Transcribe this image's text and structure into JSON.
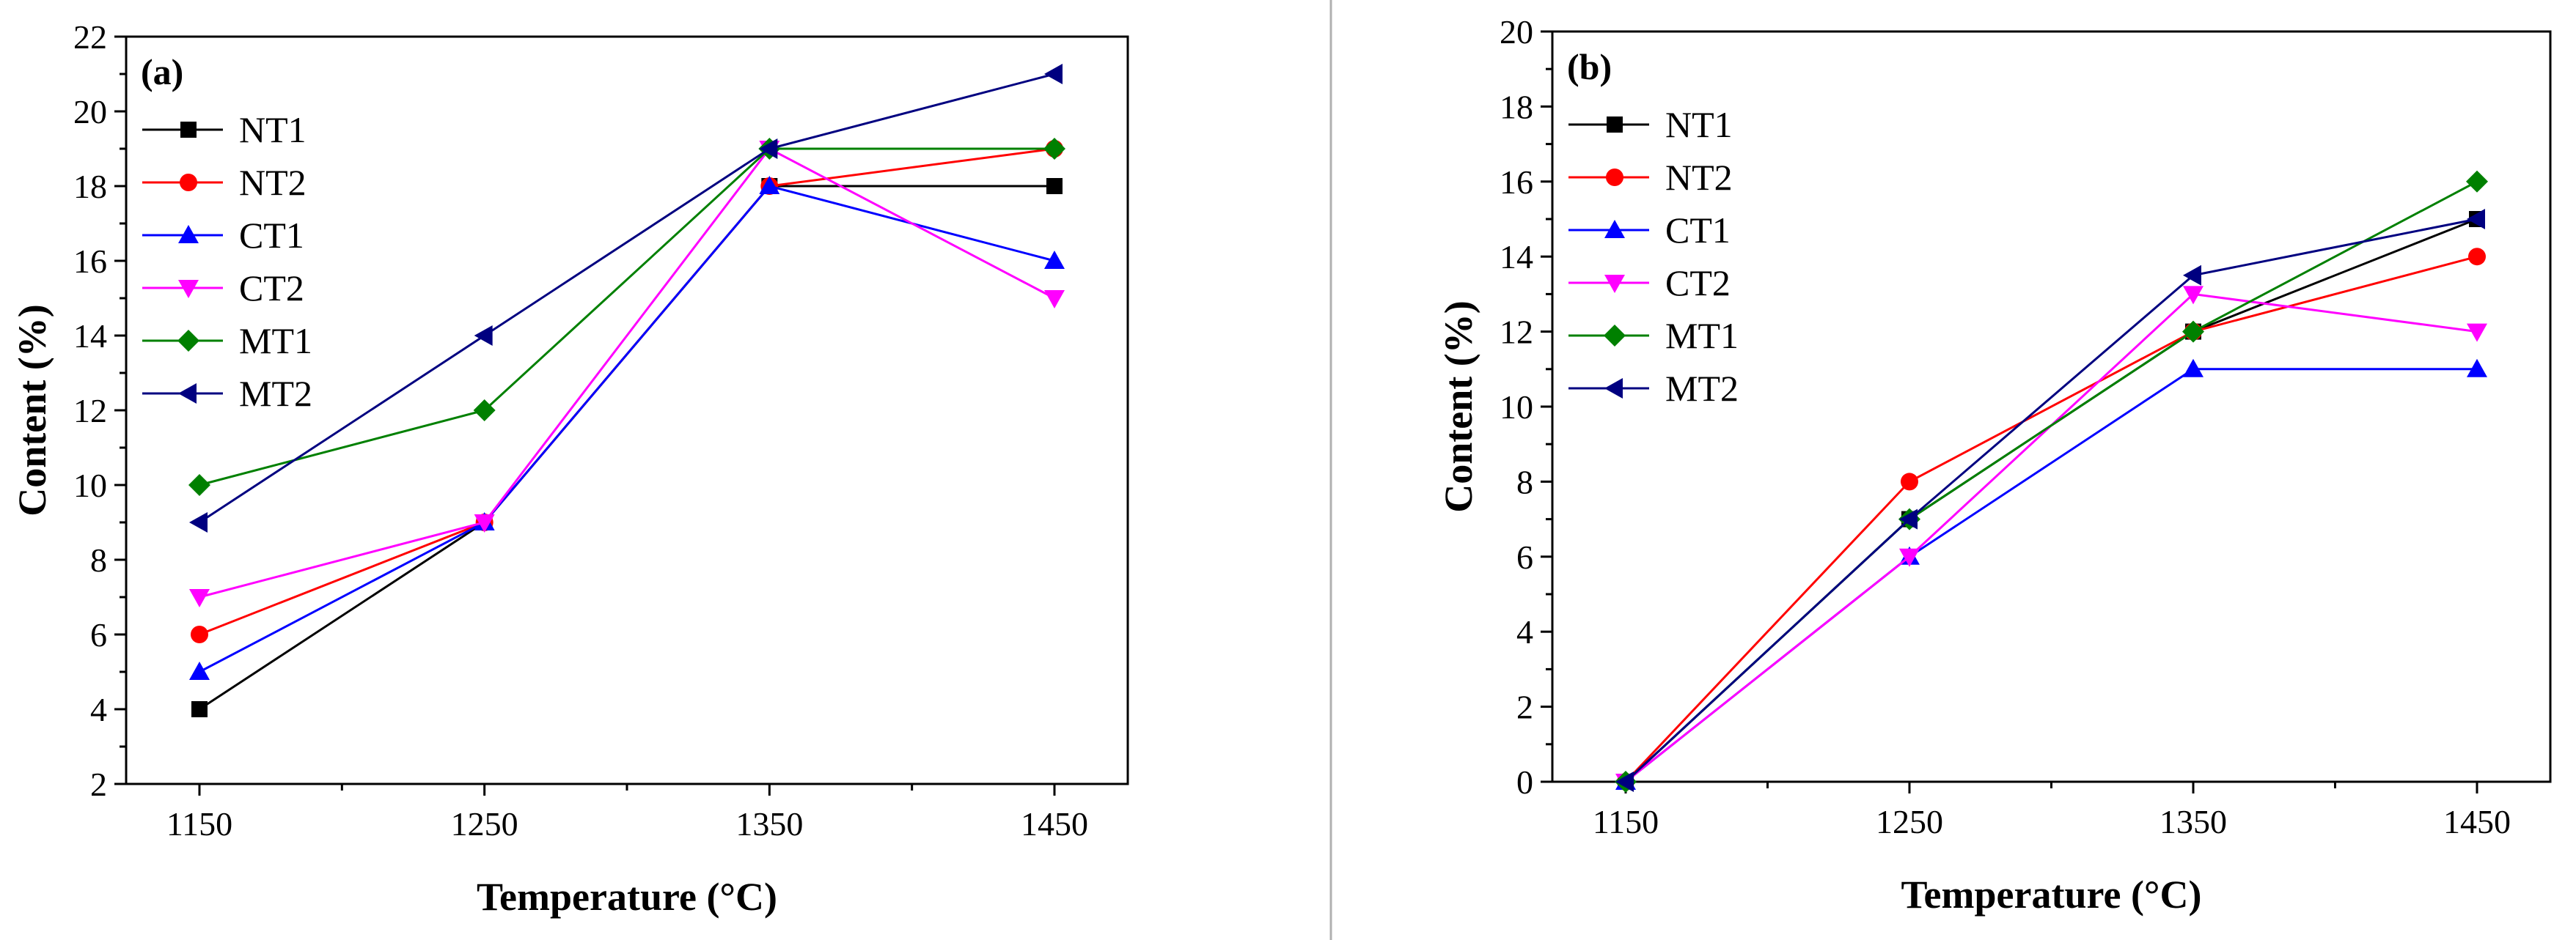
{
  "chart_data": [
    {
      "type": "line",
      "panel_label": "(a)",
      "xlabel": "Temperature (°C)",
      "ylabel": "Content (%)",
      "categories": [
        "1150",
        "1250",
        "1350",
        "1450"
      ],
      "ylim": [
        2,
        22
      ],
      "yticks": [
        2,
        4,
        6,
        8,
        10,
        12,
        14,
        16,
        18,
        20,
        22
      ],
      "grid": false,
      "legend_position": "top-left",
      "series": [
        {
          "name": "NT1",
          "color": "#000000",
          "marker": "square",
          "values": [
            4,
            9,
            18,
            18
          ]
        },
        {
          "name": "NT2",
          "color": "#ff0000",
          "marker": "circle",
          "values": [
            6,
            9,
            18,
            19
          ]
        },
        {
          "name": "CT1",
          "color": "#0000ff",
          "marker": "triangle-up",
          "values": [
            5,
            9,
            18,
            16
          ]
        },
        {
          "name": "CT2",
          "color": "#ff00ff",
          "marker": "triangle-down",
          "values": [
            7,
            9,
            19,
            15
          ]
        },
        {
          "name": "MT1",
          "color": "#008000",
          "marker": "diamond",
          "values": [
            10,
            12,
            19,
            19
          ]
        },
        {
          "name": "MT2",
          "color": "#000080",
          "marker": "triangle-left",
          "values": [
            9,
            14,
            19,
            21
          ]
        }
      ]
    },
    {
      "type": "line",
      "panel_label": "(b)",
      "xlabel": "Temperature (°C)",
      "ylabel": "Content (%)",
      "categories": [
        "1150",
        "1250",
        "1350",
        "1450"
      ],
      "ylim": [
        0,
        20
      ],
      "yticks": [
        0,
        2,
        4,
        6,
        8,
        10,
        12,
        14,
        16,
        18,
        20
      ],
      "grid": false,
      "legend_position": "top-left",
      "series": [
        {
          "name": "NT1",
          "color": "#000000",
          "marker": "square",
          "values": [
            0,
            7,
            12,
            15
          ]
        },
        {
          "name": "NT2",
          "color": "#ff0000",
          "marker": "circle",
          "values": [
            0,
            8,
            12,
            14
          ]
        },
        {
          "name": "CT1",
          "color": "#0000ff",
          "marker": "triangle-up",
          "values": [
            0,
            6,
            11,
            11
          ]
        },
        {
          "name": "CT2",
          "color": "#ff00ff",
          "marker": "triangle-down",
          "values": [
            0,
            6,
            13,
            12
          ]
        },
        {
          "name": "MT1",
          "color": "#008000",
          "marker": "diamond",
          "values": [
            0,
            7,
            12,
            16
          ]
        },
        {
          "name": "MT2",
          "color": "#000080",
          "marker": "triangle-left",
          "values": [
            0,
            7,
            13.5,
            15
          ]
        }
      ]
    }
  ]
}
